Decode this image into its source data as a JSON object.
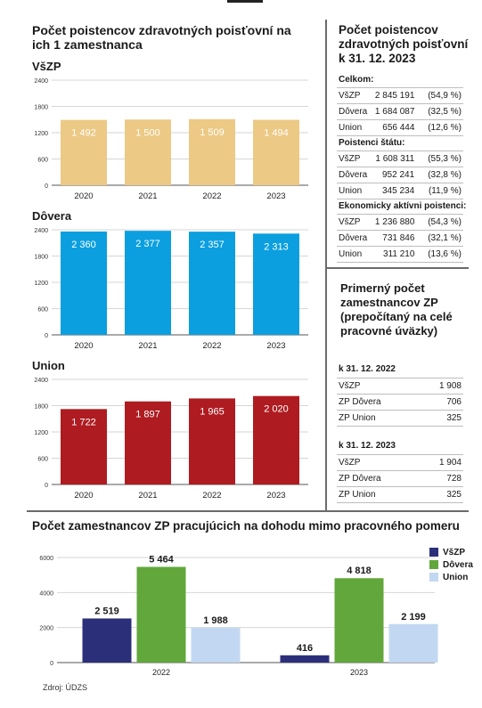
{
  "left_title": "Počet poistencov zdravotných poisťovní na ich 1 zamestnanca",
  "right_title": "Počet poistencov zdravotných poisťovní k 31. 12. 2023",
  "employees_title": "Primerný počet zamestnancov ZP (prepočítaný na celé pracovné úväzky)",
  "bottom_title": "Počet zamestnancov ZP pracujúcich na dohodu mimo pracovného pomeru",
  "source": "Zdroj: ÚDZS",
  "colors": {
    "vszp": "#ecc985",
    "dovera": "#0b9fe0",
    "union": "#ae1c21",
    "dark_blue": "#2b2f7a",
    "green": "#62a73b",
    "light_blue": "#c2d8f2"
  },
  "chart_data": [
    {
      "type": "bar",
      "title": "VšZP",
      "categories": [
        "2020",
        "2021",
        "2022",
        "2023"
      ],
      "values": [
        1492,
        1500,
        1509,
        1494
      ],
      "labels": [
        "1 492",
        "1 500",
        "1 509",
        "1 494"
      ],
      "yticks": [
        "0",
        "600",
        "1200",
        "1800",
        "2400"
      ],
      "ylim": [
        0,
        2400
      ],
      "grid": true
    },
    {
      "type": "bar",
      "title": "Dôvera",
      "categories": [
        "2020",
        "2021",
        "2022",
        "2023"
      ],
      "values": [
        2360,
        2377,
        2357,
        2313
      ],
      "labels": [
        "2 360",
        "2 377",
        "2 357",
        "2 313"
      ],
      "yticks": [
        "0",
        "600",
        "1200",
        "1800",
        "2400"
      ],
      "ylim": [
        0,
        2400
      ],
      "grid": true
    },
    {
      "type": "bar",
      "title": "Union",
      "categories": [
        "2020",
        "2021",
        "2022",
        "2023"
      ],
      "values": [
        1722,
        1897,
        1965,
        2020
      ],
      "labels": [
        "1 722",
        "1 897",
        "1 965",
        "2 020"
      ],
      "yticks": [
        "0",
        "600",
        "1200",
        "1800",
        "2400"
      ],
      "ylim": [
        0,
        2400
      ],
      "grid": true
    },
    {
      "type": "bar",
      "title": "Počet zamestnancov ZP pracujúcich na dohodu mimo pracovného pomeru",
      "categories": [
        "2022",
        "2023"
      ],
      "series": [
        {
          "name": "VšZP",
          "values": [
            2519,
            416
          ],
          "labels": [
            "2 519",
            "416"
          ]
        },
        {
          "name": "Dôvera",
          "values": [
            5464,
            4818
          ],
          "labels": [
            "5 464",
            "4 818"
          ]
        },
        {
          "name": "Union",
          "values": [
            1988,
            2199
          ],
          "labels": [
            "1 988",
            "2 199"
          ]
        }
      ],
      "yticks": [
        "0",
        "2000",
        "4000",
        "6000"
      ],
      "ylim": [
        0,
        6000
      ],
      "grid": true,
      "legend": "top-right"
    }
  ],
  "tables": {
    "insured": [
      {
        "heading": "Celkom:",
        "rows": [
          {
            "name": "VšZP",
            "value": "2 845 191",
            "pct": "(54,9 %)"
          },
          {
            "name": "Dôvera",
            "value": "1 684 087",
            "pct": "(32,5 %)"
          },
          {
            "name": "Union",
            "value": "656 444",
            "pct": "(12,6 %)"
          }
        ]
      },
      {
        "heading": "Poistenci štátu:",
        "rows": [
          {
            "name": "VšZP",
            "value": "1 608 311",
            "pct": "(55,3 %)"
          },
          {
            "name": "Dôvera",
            "value": "952 241",
            "pct": "(32,8 %)"
          },
          {
            "name": "Union",
            "value": "345 234",
            "pct": "(11,9 %)"
          }
        ]
      },
      {
        "heading": "Ekonomicky aktívni poistenci:",
        "rows": [
          {
            "name": "VšZP",
            "value": "1 236 880",
            "pct": "(54,3 %)"
          },
          {
            "name": "Dôvera",
            "value": "731 846",
            "pct": "(32,1 %)"
          },
          {
            "name": "Union",
            "value": "311 210",
            "pct": "(13,6 %)"
          }
        ]
      }
    ],
    "employees": [
      {
        "heading": "k 31. 12. 2022",
        "rows": [
          {
            "name": "VšZP",
            "value": "1 908"
          },
          {
            "name": "ZP Dôvera",
            "value": "706"
          },
          {
            "name": "ZP Union",
            "value": "325"
          }
        ]
      },
      {
        "heading": "k 31. 12. 2023",
        "rows": [
          {
            "name": "VšZP",
            "value": "1 904"
          },
          {
            "name": "ZP Dôvera",
            "value": "728"
          },
          {
            "name": "ZP Union",
            "value": "325"
          }
        ]
      }
    ]
  }
}
